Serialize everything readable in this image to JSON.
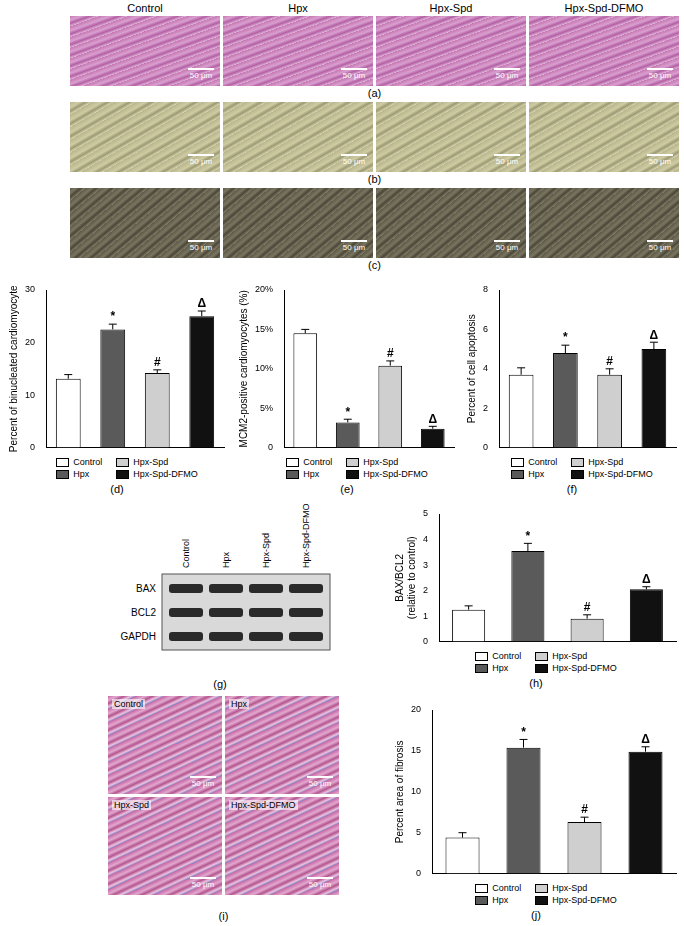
{
  "figure": {
    "groups": [
      "Control",
      "Hpx",
      "Hpx-Spd",
      "Hpx-Spd-DFMO"
    ],
    "scale_bar": "50 μm",
    "image_panels": [
      "(a)",
      "(b)",
      "(c)"
    ],
    "fibrosis_panel": "(i)",
    "blot": {
      "label": "(g)",
      "rows": [
        "BAX",
        "BCL2",
        "GAPDH"
      ]
    }
  },
  "chart_data": [
    {
      "label": "(d)",
      "type": "bar",
      "y_label": "Percent of binucleated cardiomyocyte",
      "categories": [
        "Control",
        "Hpx",
        "Hpx-Spd",
        "Hpx-Spd-DFMO"
      ],
      "values": [
        13.1,
        22.5,
        14.2,
        25.0
      ],
      "errors": [
        0.8,
        1.0,
        0.6,
        1.0
      ],
      "colors": [
        "#ffffff",
        "#5a5a5a",
        "#cfcfcf",
        "#111111"
      ],
      "annotations": [
        null,
        "*",
        "#",
        "Δ"
      ],
      "ylim": [
        0,
        30
      ],
      "yticks": [
        0,
        10,
        20,
        30
      ],
      "grid": false,
      "legend": "bottom",
      "tick_labels": "y"
    },
    {
      "label": "(e)",
      "type": "bar",
      "y_label": "MCM2-positive cardiomyocytes (%)",
      "categories": [
        "Control",
        "Hpx",
        "Hpx-Spd",
        "Hpx-Spd-DFMO"
      ],
      "values": [
        14.5,
        3.2,
        10.4,
        2.4
      ],
      "errors": [
        0.5,
        0.4,
        0.6,
        0.3
      ],
      "colors": [
        "#ffffff",
        "#5a5a5a",
        "#cfcfcf",
        "#111111"
      ],
      "annotations": [
        null,
        "*",
        "#",
        "Δ"
      ],
      "ylim": [
        0,
        20
      ],
      "yticks": [
        0,
        {
          "value": 5,
          "label": "5%"
        },
        {
          "value": 10,
          "label": "10%"
        },
        {
          "value": 15,
          "label": "15%"
        },
        {
          "value": 20,
          "label": "20%"
        }
      ],
      "grid": false,
      "legend": "bottom",
      "tick_labels": "y"
    },
    {
      "label": "(f)",
      "type": "bar",
      "y_label": "Percent of cell apoptosis",
      "categories": [
        "Control",
        "Hpx",
        "Hpx-Spd",
        "Hpx-Spd-DFMO"
      ],
      "values": [
        3.7,
        4.8,
        3.7,
        5.0
      ],
      "errors": [
        0.35,
        0.4,
        0.3,
        0.35
      ],
      "colors": [
        "#ffffff",
        "#5a5a5a",
        "#cfcfcf",
        "#111111"
      ],
      "annotations": [
        null,
        "*",
        "#",
        "Δ"
      ],
      "ylim": [
        0,
        8
      ],
      "yticks": [
        0,
        2,
        4,
        6,
        8
      ],
      "grid": false,
      "legend": "bottom",
      "tick_labels": "y"
    },
    {
      "label": "(h)",
      "type": "bar",
      "y_label": [
        "BAX/BCL2",
        "(relative to control)"
      ],
      "categories": [
        "Control",
        "Hpx",
        "Hpx-Spd",
        "Hpx-Spd-DFMO"
      ],
      "values": [
        1.25,
        3.55,
        0.9,
        2.05
      ],
      "errors": [
        0.15,
        0.3,
        0.15,
        0.1
      ],
      "colors": [
        "#ffffff",
        "#5a5a5a",
        "#cfcfcf",
        "#111111"
      ],
      "annotations": [
        null,
        "*",
        "#",
        "Δ"
      ],
      "ylim": [
        0,
        5
      ],
      "yticks": [
        0,
        1,
        2,
        3,
        4,
        5
      ],
      "grid": false,
      "legend": "bottom",
      "tick_labels": "y"
    },
    {
      "label": "(j)",
      "type": "bar",
      "y_label": "Percent area of fibrosis",
      "categories": [
        "Control",
        "Hpx",
        "Hpx-Spd",
        "Hpx-Spd-DFMO"
      ],
      "values": [
        4.4,
        15.4,
        6.3,
        14.9
      ],
      "errors": [
        0.6,
        1.0,
        0.6,
        0.6
      ],
      "colors": [
        "#ffffff",
        "#5a5a5a",
        "#cfcfcf",
        "#111111"
      ],
      "annotations": [
        null,
        "*",
        "#",
        "Δ"
      ],
      "ylim": [
        0,
        20
      ],
      "yticks": [
        0,
        5,
        10,
        15,
        20
      ],
      "grid": false,
      "legend": "bottom",
      "tick_labels": "y"
    }
  ]
}
